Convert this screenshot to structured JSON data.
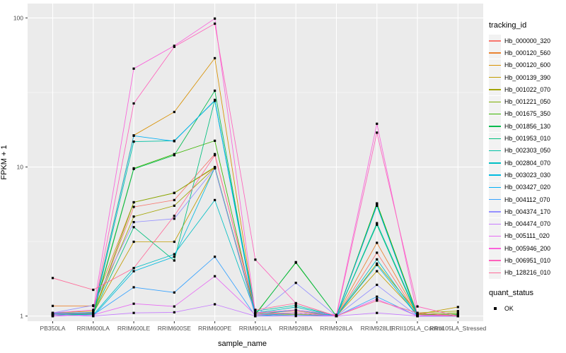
{
  "chart_data": {
    "type": "line",
    "title": "",
    "xlabel": "sample_name",
    "ylabel": "FPKM + 1",
    "y_scale": "log10",
    "ylim": [
      1,
      100
    ],
    "y_ticks": [
      1,
      10,
      100
    ],
    "y_minor_ticks": [
      3.1623,
      31.623
    ],
    "grid": true,
    "legend_position": "right",
    "categories": [
      "PB350LA",
      "RRIM600LA",
      "RRIM600LE",
      "RRIM600SE",
      "RRIM600PE",
      "RRIM901LA",
      "RRIM928BA",
      "RRIM928LA",
      "RRIM928LE",
      "RRII105LA_Control",
      "RRII105LA_Stressed"
    ],
    "series": [
      {
        "name": "Hb_000000_320",
        "color": "#F8766D",
        "values": [
          1.02,
          1.05,
          5.4,
          6.0,
          12.2,
          1.05,
          1.08,
          1.0,
          2.66,
          1.02,
          1.0
        ]
      },
      {
        "name": "Hb_000120_560",
        "color": "#EA8331",
        "values": [
          1.17,
          1.17,
          5.8,
          6.7,
          9.9,
          1.04,
          1.05,
          1.01,
          3.1,
          1.03,
          1.0
        ]
      },
      {
        "name": "Hb_000120_600",
        "color": "#D89000",
        "values": [
          1.05,
          1.08,
          16.3,
          23.4,
          53.7,
          1.02,
          1.05,
          1.0,
          5.5,
          1.02,
          1.0
        ]
      },
      {
        "name": "Hb_000139_390",
        "color": "#C09B00",
        "values": [
          1.02,
          1.05,
          3.15,
          3.15,
          9.8,
          1.0,
          1.02,
          1.0,
          2.0,
          1.03,
          1.15
        ]
      },
      {
        "name": "Hb_001022_070",
        "color": "#A3A500",
        "values": [
          1.03,
          1.06,
          4.65,
          5.5,
          9.9,
          1.02,
          1.03,
          1.0,
          2.25,
          1.05,
          1.08
        ]
      },
      {
        "name": "Hb_001221_050",
        "color": "#7CAE00",
        "values": [
          1.0,
          1.04,
          5.8,
          6.7,
          10.0,
          1.02,
          1.05,
          1.0,
          5.7,
          1.03,
          1.05
        ]
      },
      {
        "name": "Hb_001675_350",
        "color": "#39B600",
        "values": [
          1.02,
          1.05,
          9.8,
          12.2,
          15.0,
          1.03,
          2.28,
          1.0,
          5.7,
          1.02,
          1.03
        ]
      },
      {
        "name": "Hb_001856_130",
        "color": "#00BB4E",
        "values": [
          1.0,
          1.03,
          9.7,
          12.0,
          32.5,
          1.02,
          2.3,
          1.0,
          5.6,
          1.0,
          1.02
        ]
      },
      {
        "name": "Hb_001953_010",
        "color": "#00BF7D",
        "values": [
          1.02,
          1.04,
          3.95,
          2.36,
          28.2,
          1.05,
          1.1,
          1.0,
          4.1,
          1.0,
          1.0
        ]
      },
      {
        "name": "Hb_002303_050",
        "color": "#00C1A3",
        "values": [
          1.05,
          1.03,
          14.8,
          15.0,
          27.8,
          1.08,
          1.18,
          1.0,
          4.2,
          1.02,
          1.0
        ]
      },
      {
        "name": "Hb_002804_070",
        "color": "#00BFC4",
        "values": [
          1.03,
          1.02,
          2.1,
          2.6,
          6.0,
          1.05,
          1.15,
          1.0,
          2.4,
          1.0,
          1.0
        ]
      },
      {
        "name": "Hb_003023_030",
        "color": "#00BAE0",
        "values": [
          1.02,
          1.0,
          2.0,
          2.5,
          9.9,
          1.02,
          1.1,
          1.0,
          2.2,
          1.0,
          1.0
        ]
      },
      {
        "name": "Hb_003427_020",
        "color": "#00B0F6",
        "values": [
          1.04,
          1.06,
          16.2,
          14.9,
          28.0,
          1.0,
          1.05,
          1.0,
          5.5,
          1.0,
          1.0
        ]
      },
      {
        "name": "Hb_004112_070",
        "color": "#35A2FF",
        "values": [
          1.0,
          1.02,
          1.56,
          1.44,
          2.5,
          1.0,
          1.02,
          1.0,
          1.35,
          1.0,
          1.0
        ]
      },
      {
        "name": "Hb_004374_170",
        "color": "#9590FF",
        "values": [
          1.05,
          1.18,
          4.27,
          4.5,
          9.8,
          1.0,
          1.67,
          1.0,
          1.62,
          1.0,
          1.0
        ]
      },
      {
        "name": "Hb_004474_070",
        "color": "#C77CFF",
        "values": [
          1.02,
          1.0,
          1.05,
          1.06,
          1.2,
          1.0,
          1.0,
          1.0,
          1.05,
          1.0,
          1.0
        ]
      },
      {
        "name": "Hb_005111_020",
        "color": "#E76BF3",
        "values": [
          1.0,
          1.02,
          1.21,
          1.16,
          1.85,
          1.02,
          1.05,
          1.0,
          1.3,
          1.0,
          1.0
        ]
      },
      {
        "name": "Hb_005946_200",
        "color": "#FA62DB",
        "values": [
          1.05,
          1.1,
          45.7,
          65.0,
          99.0,
          1.05,
          1.1,
          1.02,
          19.5,
          1.02,
          1.0
        ]
      },
      {
        "name": "Hb_006951_010",
        "color": "#FF62BC",
        "values": [
          1.03,
          1.05,
          26.7,
          64.0,
          91.5,
          2.39,
          1.22,
          1.0,
          17.0,
          1.16,
          1.0
        ]
      },
      {
        "name": "Hb_128216_010",
        "color": "#FF6A98",
        "values": [
          1.8,
          1.5,
          2.1,
          4.7,
          12.0,
          1.1,
          1.22,
          1.0,
          1.27,
          1.05,
          1.0
        ]
      }
    ],
    "legend_line": {
      "title": "tracking_id"
    },
    "legend_point": {
      "title": "quant_status",
      "items": [
        {
          "label": "OK",
          "marker": "black-square"
        }
      ]
    },
    "style": {
      "background": "#FFFFFF",
      "panel_bg": "#EBEBEB",
      "grid_color": "#FFFFFF",
      "tick_label_color": "#4D4D4D",
      "point_color": "#000000",
      "legend_key_bg": "#F2F2F2"
    }
  }
}
